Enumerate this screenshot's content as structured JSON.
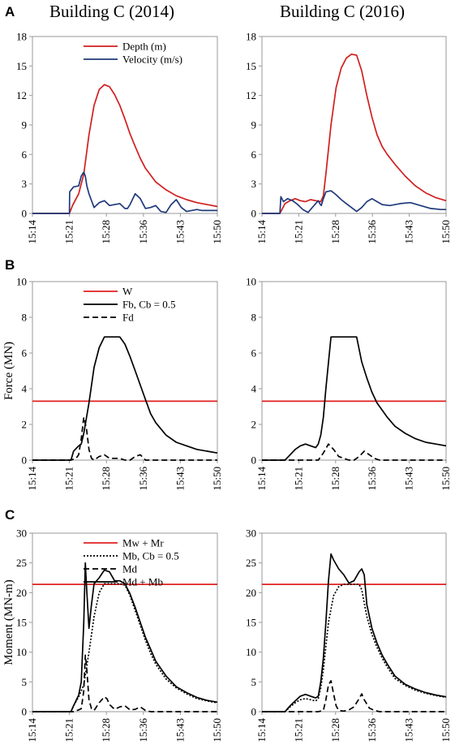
{
  "figure": {
    "column_titles": [
      "Building C (2014)",
      "Building C (2016)"
    ],
    "panel_labels": [
      "A",
      "B",
      "C"
    ],
    "x_ticks": [
      "15:14",
      "15:21",
      "15:28",
      "15:36",
      "15:43",
      "15:50"
    ]
  },
  "chart_data": [
    {
      "id": "A-2014",
      "type": "line",
      "panel": "A",
      "title": "Building C (2014)",
      "ylabel": "",
      "ylim": [
        0,
        18
      ],
      "yticks": [
        0,
        3,
        6,
        9,
        12,
        15,
        18
      ],
      "x_ticks": [
        "15:14",
        "15:21",
        "15:28",
        "15:36",
        "15:43",
        "15:50"
      ],
      "xlim_minutes": [
        0,
        36
      ],
      "legend": {
        "position": "top-center"
      },
      "series": [
        {
          "name": "Depth (m)",
          "color": "#d11f1f",
          "dash": "solid",
          "x": [
            0,
            7.2,
            7.8,
            9,
            10,
            11,
            12,
            13,
            14,
            15,
            16,
            17,
            18,
            19,
            20,
            21,
            22,
            24,
            26,
            28,
            30,
            32,
            34,
            36
          ],
          "y": [
            0,
            0,
            0.8,
            2,
            4,
            8,
            11,
            12.6,
            13.1,
            12.9,
            12.1,
            11,
            9.6,
            8.1,
            6.8,
            5.6,
            4.6,
            3.2,
            2.4,
            1.8,
            1.4,
            1.1,
            0.9,
            0.7
          ]
        },
        {
          "name": "Velocity (m/s)",
          "color": "#1f3a7a",
          "dash": "solid",
          "x": [
            0,
            7.2,
            7.25,
            8,
            9,
            9.5,
            10,
            10.3,
            10.6,
            11,
            12,
            13,
            14,
            15,
            16,
            17,
            18,
            18.5,
            19,
            20,
            21,
            22,
            23,
            24,
            25,
            26,
            27,
            28,
            29,
            30,
            31,
            32,
            33,
            34,
            35,
            36
          ],
          "y": [
            0,
            0,
            2.2,
            2.7,
            2.8,
            3.8,
            4.2,
            3.8,
            2.8,
            2.0,
            0.6,
            1.1,
            1.3,
            0.8,
            0.9,
            1.0,
            0.5,
            0.5,
            0.9,
            2.0,
            1.5,
            0.5,
            0.6,
            0.8,
            0.2,
            0.1,
            0.9,
            1.4,
            0.6,
            0.2,
            0.3,
            0.4,
            0.3,
            0.3,
            0.3,
            0.3
          ]
        }
      ]
    },
    {
      "id": "A-2016",
      "type": "line",
      "panel": "A",
      "title": "Building C (2016)",
      "ylabel": "",
      "ylim": [
        0,
        18
      ],
      "yticks": [
        0,
        3,
        6,
        9,
        12,
        15,
        18
      ],
      "x_ticks": [
        "15:14",
        "15:21",
        "15:28",
        "15:36",
        "15:43",
        "15:50"
      ],
      "xlim_minutes": [
        0,
        36
      ],
      "series": [
        {
          "name": "Depth (m)",
          "color": "#d11f1f",
          "dash": "solid",
          "x": [
            0,
            3.5,
            4.5,
            5.5,
            6.5,
            7.5,
            8.5,
            9.5,
            10.5,
            11.5,
            12,
            12.5,
            13.5,
            14.5,
            15.5,
            16.5,
            17.5,
            18.5,
            19.5,
            20.5,
            21.5,
            22.5,
            23.5,
            24.5,
            26,
            28,
            30,
            32,
            34,
            36
          ],
          "y": [
            0,
            0,
            1.0,
            1.3,
            1.5,
            1.3,
            1.2,
            1.4,
            1.3,
            1.2,
            1.8,
            4,
            9,
            12.8,
            14.8,
            15.8,
            16.2,
            16.1,
            14.5,
            12.0,
            9.8,
            8.0,
            6.8,
            6.0,
            5.0,
            3.8,
            2.8,
            2.1,
            1.6,
            1.3
          ]
        },
        {
          "name": "Velocity (m/s)",
          "color": "#1f3a7a",
          "dash": "solid",
          "x": [
            0,
            3.5,
            3.7,
            4.2,
            5,
            6,
            7,
            8,
            9,
            10,
            11,
            11.3,
            11.6,
            12,
            12.5,
            13.5,
            14.5,
            15.5,
            16.5,
            17.5,
            18.5,
            19.5,
            20.5,
            21.5,
            22.5,
            23.5,
            25,
            27,
            29,
            31,
            33,
            35,
            36
          ],
          "y": [
            0,
            0,
            1.7,
            1.2,
            1.5,
            1.3,
            0.9,
            0.4,
            0.1,
            0.7,
            1.3,
            1.0,
            0.8,
            1.5,
            2.2,
            2.3,
            1.9,
            1.4,
            1.0,
            0.6,
            0.2,
            0.6,
            1.2,
            1.5,
            1.2,
            0.9,
            0.8,
            1.0,
            1.1,
            0.8,
            0.5,
            0.4,
            0.4
          ]
        }
      ]
    },
    {
      "id": "B-2014",
      "type": "line",
      "panel": "B",
      "ylabel": "Force (MN)",
      "ylim": [
        0,
        10
      ],
      "yticks": [
        0,
        2,
        4,
        6,
        8,
        10
      ],
      "x_ticks": [
        "15:14",
        "15:21",
        "15:28",
        "15:36",
        "15:43",
        "15:50"
      ],
      "xlim_minutes": [
        0,
        36
      ],
      "legend": {
        "position": "top-center"
      },
      "series": [
        {
          "name": "W",
          "color": "#e02020",
          "dash": "solid",
          "x": [
            0,
            36
          ],
          "y": [
            3.3,
            3.3
          ]
        },
        {
          "name": "Fb, Cb = 0.5",
          "color": "#000000",
          "dash": "solid",
          "x": [
            0,
            7.5,
            8,
            9,
            9.5,
            10,
            11,
            12,
            13,
            14,
            15,
            16,
            17,
            18,
            19,
            20,
            21,
            22,
            23,
            24,
            26,
            28,
            30,
            32,
            34,
            36
          ],
          "y": [
            0,
            0,
            0.5,
            0.8,
            0.9,
            1.5,
            3.2,
            5.2,
            6.3,
            6.9,
            6.9,
            6.9,
            6.9,
            6.5,
            5.8,
            5.0,
            4.2,
            3.4,
            2.6,
            2.1,
            1.4,
            1.0,
            0.8,
            0.6,
            0.5,
            0.4
          ]
        },
        {
          "name": "Fd",
          "color": "#000000",
          "dash": "dash",
          "x": [
            0,
            7.5,
            8.5,
            9,
            9.5,
            10,
            10.5,
            11,
            11.5,
            12,
            13,
            14,
            15,
            16,
            17,
            18,
            19,
            20,
            21,
            22,
            23,
            24,
            36
          ],
          "y": [
            0,
            0,
            0.1,
            0.3,
            1.2,
            2.4,
            1.8,
            0.6,
            0.1,
            0.0,
            0.2,
            0.3,
            0.1,
            0.1,
            0.1,
            0.0,
            0.0,
            0.2,
            0.3,
            0.0,
            0.0,
            0.0,
            0.0
          ]
        }
      ]
    },
    {
      "id": "B-2016",
      "type": "line",
      "panel": "B",
      "ylabel": "",
      "ylim": [
        0,
        10
      ],
      "yticks": [
        0,
        2,
        4,
        6,
        8,
        10
      ],
      "x_ticks": [
        "15:14",
        "15:21",
        "15:28",
        "15:36",
        "15:43",
        "15:50"
      ],
      "xlim_minutes": [
        0,
        36
      ],
      "series": [
        {
          "name": "W",
          "color": "#e02020",
          "dash": "solid",
          "x": [
            0,
            36
          ],
          "y": [
            3.3,
            3.3
          ]
        },
        {
          "name": "Fb, Cb = 0.5",
          "color": "#000000",
          "dash": "solid",
          "x": [
            0,
            4.5,
            5.5,
            6.5,
            7.5,
            8.5,
            9.5,
            10.5,
            11,
            11.5,
            12,
            12.5,
            13.5,
            14.5,
            15.5,
            16.5,
            17.5,
            18.5,
            19.5,
            20.5,
            21.5,
            22.5,
            23.5,
            24.5,
            26,
            28,
            30,
            32,
            34,
            36
          ],
          "y": [
            0,
            0,
            0.3,
            0.6,
            0.8,
            0.9,
            0.8,
            0.7,
            0.9,
            1.4,
            2.4,
            4.0,
            6.9,
            6.9,
            6.9,
            6.9,
            6.9,
            6.9,
            5.5,
            4.6,
            3.8,
            3.2,
            2.8,
            2.4,
            1.9,
            1.5,
            1.2,
            1.0,
            0.9,
            0.8
          ]
        },
        {
          "name": "Fd",
          "color": "#000000",
          "dash": "dash",
          "x": [
            0,
            11,
            12,
            13,
            14,
            15,
            16,
            17,
            18,
            19,
            20,
            21,
            22,
            23,
            24,
            25,
            36
          ],
          "y": [
            0,
            0,
            0.4,
            0.9,
            0.6,
            0.2,
            0.1,
            0.0,
            0.0,
            0.2,
            0.5,
            0.3,
            0.1,
            0.0,
            0.0,
            0.0,
            0.0
          ]
        }
      ]
    },
    {
      "id": "C-2014",
      "type": "line",
      "panel": "C",
      "ylabel": "Moment (MN-m)",
      "ylim": [
        0,
        30
      ],
      "yticks": [
        0,
        5,
        10,
        15,
        20,
        25,
        30
      ],
      "x_ticks": [
        "15:14",
        "15:21",
        "15:28",
        "15:36",
        "15:43",
        "15:50"
      ],
      "xlim_minutes": [
        0,
        36
      ],
      "legend": {
        "position": "top-center"
      },
      "series": [
        {
          "name": "Mw + Mr",
          "color": "#e02020",
          "dash": "solid",
          "x": [
            0,
            36
          ],
          "y": [
            21.4,
            21.4
          ]
        },
        {
          "name": "Mb, Cb = 0.5",
          "color": "#000000",
          "dash": "dot",
          "x": [
            0,
            7.5,
            8,
            9,
            10,
            11,
            12,
            13,
            14,
            15,
            16,
            17,
            18,
            19,
            20,
            21,
            22,
            23,
            24,
            26,
            28,
            30,
            32,
            34,
            36
          ],
          "y": [
            0,
            0,
            1.0,
            2.5,
            4.5,
            10,
            16,
            20,
            21.5,
            21.5,
            21.5,
            21.5,
            21.3,
            19.5,
            17,
            14.5,
            12,
            9.8,
            8.0,
            5.5,
            4.0,
            3.0,
            2.2,
            1.8,
            1.5
          ]
        },
        {
          "name": "Md",
          "color": "#000000",
          "dash": "dash",
          "x": [
            0,
            8,
            9,
            9.5,
            10,
            10.3,
            10.6,
            11,
            11.5,
            12,
            13,
            14,
            14.5,
            15,
            16,
            17,
            18,
            19,
            20,
            21,
            22,
            23,
            24,
            36
          ],
          "y": [
            0,
            0,
            0.3,
            0.5,
            3.5,
            9.5,
            7.0,
            2.0,
            0.5,
            0.2,
            1.5,
            2.5,
            2.2,
            1.2,
            0.4,
            0.8,
            1.0,
            0.3,
            0.4,
            0.8,
            0.2,
            0.0,
            0.0,
            0.0
          ]
        },
        {
          "name": "Md + Mb",
          "color": "#000000",
          "dash": "solid",
          "x": [
            0,
            7.5,
            8,
            9,
            9.5,
            10,
            10.3,
            10.6,
            11,
            11.5,
            12,
            13,
            14,
            15,
            16,
            17,
            18,
            19,
            20,
            21,
            22,
            23,
            24,
            26,
            28,
            30,
            32,
            34,
            36
          ],
          "y": [
            0,
            0,
            1.0,
            2.8,
            5.0,
            15.0,
            25.0,
            20.0,
            14.0,
            18.0,
            21.5,
            22.5,
            23.8,
            23.5,
            22.0,
            22.0,
            21.5,
            19.8,
            17.5,
            15.0,
            12.5,
            10.5,
            8.5,
            6.0,
            4.2,
            3.2,
            2.4,
            1.9,
            1.6
          ]
        }
      ]
    },
    {
      "id": "C-2016",
      "type": "line",
      "panel": "C",
      "ylabel": "",
      "ylim": [
        0,
        30
      ],
      "yticks": [
        0,
        5,
        10,
        15,
        20,
        25,
        30
      ],
      "x_ticks": [
        "15:14",
        "15:21",
        "15:28",
        "15:36",
        "15:43",
        "15:50"
      ],
      "xlim_minutes": [
        0,
        36
      ],
      "series": [
        {
          "name": "Mw + Mr",
          "color": "#e02020",
          "dash": "solid",
          "x": [
            0,
            36
          ],
          "y": [
            21.4,
            21.4
          ]
        },
        {
          "name": "Mb, Cb = 0.5",
          "color": "#000000",
          "dash": "dot",
          "x": [
            0,
            4.5,
            5.5,
            6.5,
            7.5,
            8.5,
            9.5,
            10.5,
            11,
            11.5,
            12,
            12.5,
            13,
            14,
            15,
            16,
            17,
            18,
            19,
            19.5,
            20.5,
            21.5,
            22.5,
            23.5,
            24.5,
            26,
            28,
            30,
            32,
            34,
            36
          ],
          "y": [
            0,
            0,
            0.8,
            1.5,
            2.0,
            2.2,
            2.0,
            1.8,
            2.2,
            4.0,
            7.0,
            11.0,
            15.0,
            19.5,
            21.0,
            21.4,
            21.4,
            21.4,
            21.4,
            20.5,
            16.0,
            13.0,
            10.8,
            9.0,
            7.5,
            5.6,
            4.4,
            3.6,
            3.1,
            2.7,
            2.4
          ]
        },
        {
          "name": "Md",
          "color": "#000000",
          "dash": "dash",
          "x": [
            0,
            11,
            12,
            12.5,
            13,
            13.5,
            14,
            14.5,
            15,
            16,
            17,
            18,
            19,
            19.5,
            20,
            21,
            22,
            23,
            24,
            36
          ],
          "y": [
            0,
            0,
            0.2,
            2.0,
            4.5,
            5.2,
            3.0,
            1.0,
            0.2,
            0.1,
            0.3,
            0.8,
            2.2,
            3.0,
            2.0,
            0.6,
            0.2,
            0.0,
            0.0,
            0.0
          ]
        },
        {
          "name": "Md + Mb",
          "color": "#000000",
          "dash": "solid",
          "x": [
            0,
            4.5,
            5.5,
            6.5,
            7.5,
            8.5,
            9.5,
            10.5,
            11,
            11.5,
            12,
            12.5,
            13,
            13.5,
            14,
            15,
            16,
            17,
            18,
            19,
            19.5,
            20,
            20.5,
            21.5,
            22.5,
            23.5,
            24.5,
            26,
            28,
            30,
            32,
            34,
            36
          ],
          "y": [
            0,
            0,
            1.0,
            1.8,
            2.6,
            2.9,
            2.6,
            2.3,
            2.6,
            5.0,
            9.0,
            15.0,
            22.0,
            26.5,
            25.5,
            24.0,
            23.0,
            21.6,
            22.0,
            23.5,
            24.0,
            23.0,
            18.0,
            14.0,
            11.5,
            9.5,
            8.0,
            6.0,
            4.6,
            3.8,
            3.2,
            2.8,
            2.5
          ]
        }
      ]
    }
  ]
}
